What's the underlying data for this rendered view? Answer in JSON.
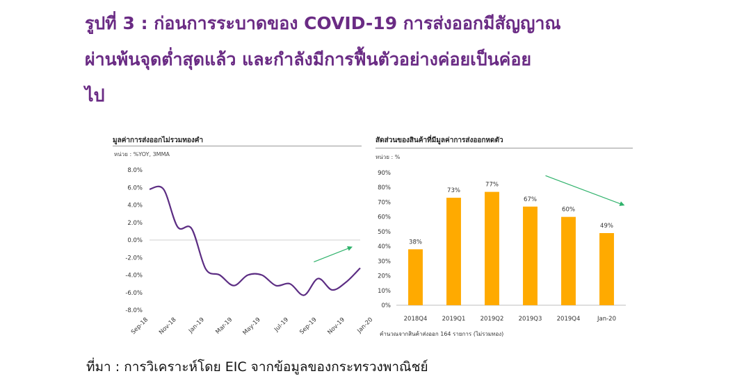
{
  "headline": {
    "line1": "รูปที่ 3 : ก่อนการระบาดของ COVID-19 การส่งออกมีสัญญาณ",
    "line2": "ผ่านพ้นจุดต่ำสุดแล้ว    และกำลังมีการฟื้นตัวอย่างค่อยเป็นค่อย",
    "line3": "ไป"
  },
  "source": "ที่มา : การวิเคราะห์โดย EIC จากข้อมูลของกระทรวงพาณิชย์",
  "colors": {
    "headline": "#6a2b84",
    "line": "#5c2d83",
    "bar": "#ffaa00",
    "arrow": "#2fb26b"
  },
  "chart_data": [
    {
      "type": "line",
      "title": "มูลค่าการส่งออกไม่รวมทองคำ",
      "unit": "หน่วย : %YOY, 3MMA",
      "ylim": [
        -8,
        8
      ],
      "yticks": [
        "8.0%",
        "6.0%",
        "4.0%",
        "2.0%",
        "0.0%",
        "-2.0%",
        "-4.0%",
        "-6.0%",
        "-8.0%"
      ],
      "ytick_values": [
        8,
        6,
        4,
        2,
        0,
        -2,
        -4,
        -6,
        -8
      ],
      "xticks": [
        "Sep-18",
        "Nov-18",
        "Jan-19",
        "Mar-19",
        "May-19",
        "Jul-19",
        "Sep-19",
        "Nov-19",
        "Jan-20"
      ],
      "x_start": "Sep-18",
      "series": [
        {
          "values": [
            5.8,
            5.8,
            1.5,
            1.3,
            -3.3,
            -4.0,
            -5.2,
            -4.0,
            -4.0,
            -5.2,
            -5.0,
            -6.3,
            -4.4,
            -5.7,
            -4.8,
            -3.2
          ]
        }
      ],
      "trend_arrow": "up"
    },
    {
      "type": "bar",
      "title": "สัดส่วนของสินค้าที่มีมูลค่าการส่งออกหดตัว",
      "unit": "หน่วย : %",
      "categories": [
        "2018Q4",
        "2019Q1",
        "2019Q2",
        "2019Q3",
        "2019Q4",
        "Jan-20"
      ],
      "values": [
        38,
        73,
        77,
        67,
        60,
        49
      ],
      "labels": [
        "38%",
        "73%",
        "77%",
        "67%",
        "60%",
        "49%"
      ],
      "ylim": [
        0,
        90
      ],
      "yticks": [
        "90%",
        "80%",
        "70%",
        "60%",
        "50%",
        "40%",
        "30%",
        "20%",
        "10%",
        "0%"
      ],
      "ytick_values": [
        90,
        80,
        70,
        60,
        50,
        40,
        30,
        20,
        10,
        0
      ],
      "note": "คำนวณจากสินค้าส่งออก 164 รายการ (ไม่รวมทอง)",
      "trend_arrow": "down"
    }
  ]
}
